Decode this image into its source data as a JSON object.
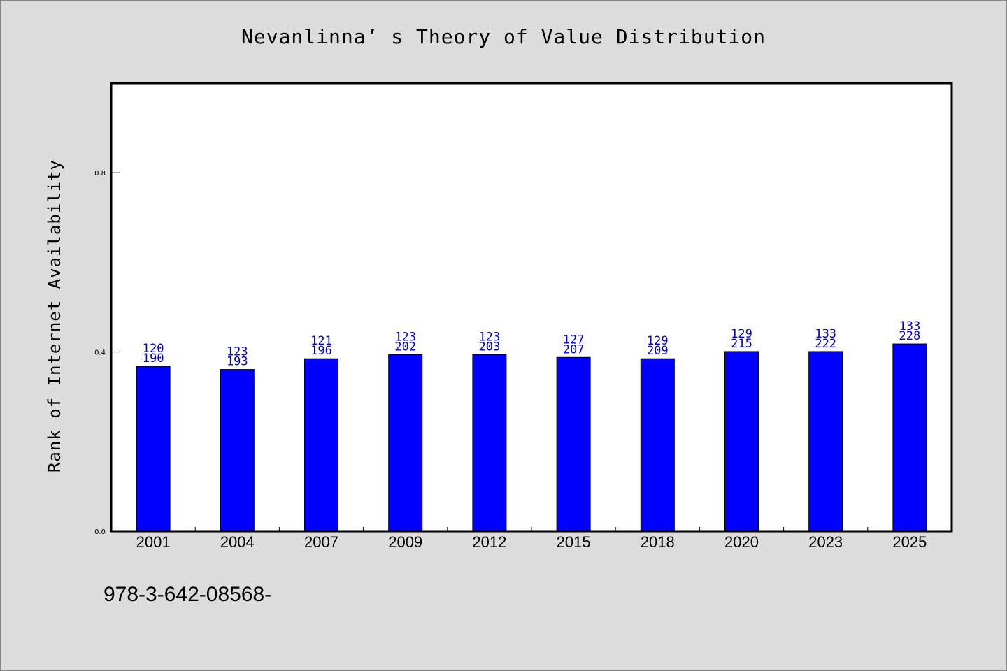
{
  "chart_data": {
    "type": "bar",
    "title": "Nevanlinna’ s Theory of Value Distribution",
    "xlabel": "",
    "ylabel": "Rank of Internet Availability",
    "ylim": [
      0,
      1.0
    ],
    "yticks": [
      0.0,
      0.4,
      0.8
    ],
    "ytick_labels": [
      "0.0",
      "0.4",
      "0.8"
    ],
    "grid": false,
    "categories": [
      "2001",
      "2004",
      "2007",
      "2009",
      "2012",
      "2015",
      "2018",
      "2020",
      "2023",
      "2025"
    ],
    "values": [
      0.368,
      0.361,
      0.385,
      0.394,
      0.394,
      0.388,
      0.385,
      0.401,
      0.401,
      0.418
    ],
    "annotation_top": [
      "120",
      "123",
      "121",
      "123",
      "123",
      "127",
      "129",
      "129",
      "133",
      "133"
    ],
    "annotation_bottom": [
      "190",
      "193",
      "196",
      "202",
      "203",
      "207",
      "209",
      "215",
      "222",
      "228"
    ],
    "bar_color": "#0000ff",
    "label_color": "#0000cc"
  },
  "footer": {
    "isbn": "978-3-642-08568-"
  }
}
